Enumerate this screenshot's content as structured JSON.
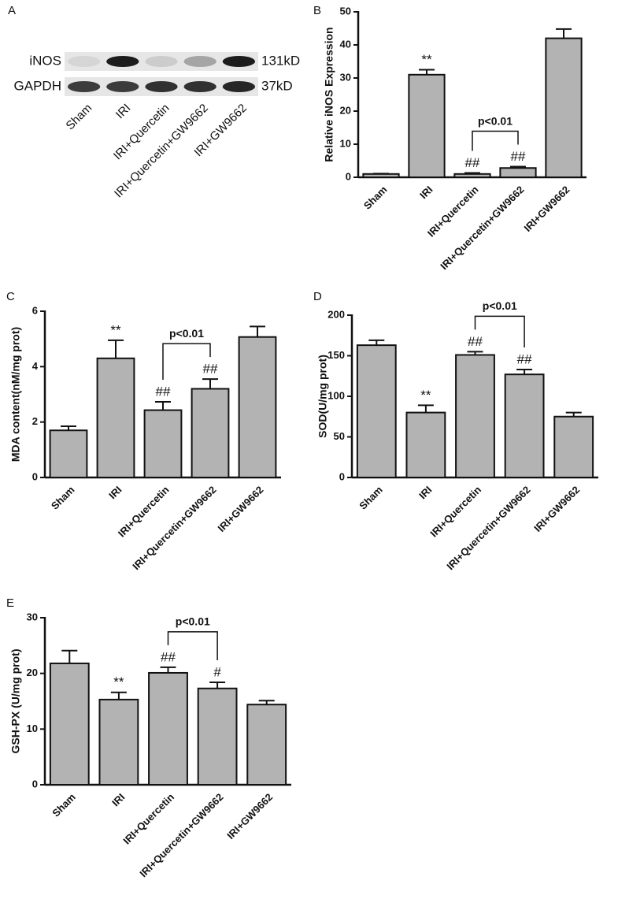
{
  "chart_data": [
    {
      "type": "blot",
      "panel": "A",
      "rows": [
        {
          "name": "iNOS",
          "size": "131kD"
        },
        {
          "name": "GAPDH",
          "size": "37kD"
        }
      ],
      "categories": [
        "Sham",
        "IRI",
        "IRI+Quercetin",
        "IRI+Quercetin+GW9662",
        "IRI+GW9662"
      ]
    },
    {
      "type": "bar",
      "panel": "B",
      "y_label": "Relative iNOS Expression",
      "categories": [
        "Sham",
        "IRI",
        "IRI+Quercetin",
        "IRI+Quercetin+GW9662",
        "IRI+GW9662"
      ],
      "values": [
        1,
        31,
        1,
        2.8,
        42
      ],
      "errors": [
        0.1,
        1.5,
        0.3,
        0.4,
        2.8
      ],
      "markers": [
        null,
        "**",
        "##",
        "##",
        null
      ],
      "bracket": {
        "label": "p<0.01",
        "between": [
          "IRI+Quercetin",
          "IRI+Quercetin+GW9662"
        ]
      },
      "color": "#b3b3b3",
      "ylim": [
        0,
        50
      ],
      "yticks": [
        0,
        10,
        20,
        30,
        40,
        50
      ]
    },
    {
      "type": "bar",
      "panel": "C",
      "y_label": "MDA content(nM/mg prot)",
      "categories": [
        "Sham",
        "IRI",
        "IRI+Quercetin",
        "IRI+Quercetin+GW9662",
        "IRI+GW9662"
      ],
      "values": [
        1.7,
        4.3,
        2.43,
        3.2,
        5.07
      ],
      "errors": [
        0.15,
        0.65,
        0.3,
        0.35,
        0.38
      ],
      "markers": [
        null,
        "**",
        "##",
        "##",
        null
      ],
      "bracket": {
        "label": "p<0.01",
        "between": [
          "IRI+Quercetin",
          "IRI+Quercetin+GW9662"
        ]
      },
      "color": "#b3b3b3",
      "ylim": [
        0,
        6
      ],
      "yticks": [
        0,
        2,
        4,
        6
      ]
    },
    {
      "type": "bar",
      "panel": "D",
      "y_label": "SOD(U/mg prot)",
      "categories": [
        "Sham",
        "IRI",
        "IRI+Quercetin",
        "IRI+Quercetin+GW9662",
        "IRI+GW9662"
      ],
      "values": [
        163,
        80,
        151,
        127,
        75
      ],
      "errors": [
        6,
        9,
        4,
        6,
        5
      ],
      "markers": [
        null,
        "**",
        "##",
        "##",
        null
      ],
      "bracket": {
        "label": "p<0.01",
        "between": [
          "IRI+Quercetin",
          "IRI+Quercetin+GW9662"
        ]
      },
      "color": "#b3b3b3",
      "ylim": [
        0,
        200
      ],
      "yticks": [
        0,
        50,
        100,
        150,
        200
      ]
    },
    {
      "type": "bar",
      "panel": "E",
      "y_label": "GSH-PX (U/mg prot)",
      "categories": [
        "Sham",
        "IRI",
        "IRI+Quercetin",
        "IRI+Quercetin+GW9662",
        "IRI+GW9662"
      ],
      "values": [
        21.8,
        15.3,
        20.1,
        17.3,
        14.4
      ],
      "errors": [
        2.3,
        1.3,
        1.0,
        1.1,
        0.7
      ],
      "markers": [
        null,
        "**",
        "##",
        "#",
        null
      ],
      "bracket": {
        "label": "p<0.01",
        "between": [
          "IRI+Quercetin",
          "IRI+Quercetin+GW9662"
        ]
      },
      "color": "#b3b3b3",
      "ylim": [
        0,
        30
      ],
      "yticks": [
        0,
        10,
        20,
        30
      ]
    }
  ]
}
